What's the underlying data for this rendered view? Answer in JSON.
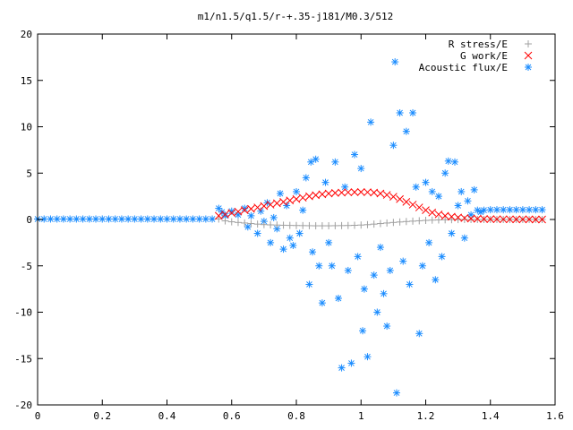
{
  "chart_data": {
    "type": "scatter",
    "title": "m1/n1.5/q1.5/r-+.35-j181/M0.3/512",
    "xlabel": "",
    "ylabel": "",
    "xlim": [
      0,
      1.6
    ],
    "ylim": [
      -20,
      20
    ],
    "x_ticks": [
      "0",
      "0.2",
      "0.4",
      "0.6",
      "0.8",
      "1",
      "1.2",
      "1.4",
      "1.6"
    ],
    "y_ticks": [
      "20",
      "15",
      "10",
      "5",
      "0",
      "-5",
      "-10",
      "-15",
      "-20"
    ],
    "grid": false,
    "legend_position": "top-right",
    "series": [
      {
        "name": "R stress/E",
        "marker": "+",
        "color": "#a0a0a0",
        "points": [
          [
            0.56,
            0.05
          ],
          [
            0.58,
            -0.15
          ],
          [
            0.6,
            -0.25
          ],
          [
            0.62,
            -0.32
          ],
          [
            0.64,
            -0.38
          ],
          [
            0.66,
            -0.44
          ],
          [
            0.68,
            -0.5
          ],
          [
            0.7,
            -0.55
          ],
          [
            0.72,
            -0.58
          ],
          [
            0.74,
            -0.6
          ],
          [
            0.76,
            -0.62
          ],
          [
            0.78,
            -0.64
          ],
          [
            0.8,
            -0.65
          ],
          [
            0.82,
            -0.66
          ],
          [
            0.84,
            -0.67
          ],
          [
            0.86,
            -0.68
          ],
          [
            0.88,
            -0.68
          ],
          [
            0.9,
            -0.68
          ],
          [
            0.92,
            -0.67
          ],
          [
            0.94,
            -0.66
          ],
          [
            0.96,
            -0.65
          ],
          [
            0.98,
            -0.63
          ],
          [
            1.0,
            -0.6
          ],
          [
            1.02,
            -0.56
          ],
          [
            1.04,
            -0.5
          ],
          [
            1.06,
            -0.44
          ],
          [
            1.08,
            -0.38
          ],
          [
            1.1,
            -0.32
          ],
          [
            1.12,
            -0.27
          ],
          [
            1.14,
            -0.22
          ],
          [
            1.16,
            -0.18
          ],
          [
            1.18,
            -0.14
          ],
          [
            1.2,
            -0.1
          ],
          [
            1.22,
            -0.07
          ],
          [
            1.24,
            -0.05
          ],
          [
            1.26,
            -0.03
          ],
          [
            1.28,
            -0.02
          ],
          [
            1.3,
            -0.01
          ],
          [
            1.32,
            0.0
          ],
          [
            1.34,
            0.0
          ],
          [
            1.36,
            0.0
          ],
          [
            1.38,
            0.0
          ],
          [
            1.4,
            0.0
          ],
          [
            1.42,
            0.0
          ],
          [
            1.44,
            0.0
          ],
          [
            1.46,
            0.0
          ],
          [
            1.48,
            0.0
          ],
          [
            1.5,
            0.0
          ],
          [
            1.52,
            0.0
          ],
          [
            1.54,
            0.0
          ],
          [
            1.56,
            0.0
          ]
        ]
      },
      {
        "name": "G work/E",
        "marker": "x",
        "color": "#ff0000",
        "points": [
          [
            0.56,
            0.4
          ],
          [
            0.58,
            0.55
          ],
          [
            0.6,
            0.7
          ],
          [
            0.62,
            0.85
          ],
          [
            0.64,
            1.0
          ],
          [
            0.66,
            1.15
          ],
          [
            0.68,
            1.3
          ],
          [
            0.7,
            1.45
          ],
          [
            0.72,
            1.6
          ],
          [
            0.74,
            1.75
          ],
          [
            0.76,
            1.9
          ],
          [
            0.78,
            2.05
          ],
          [
            0.8,
            2.2
          ],
          [
            0.82,
            2.35
          ],
          [
            0.84,
            2.5
          ],
          [
            0.86,
            2.62
          ],
          [
            0.88,
            2.72
          ],
          [
            0.9,
            2.8
          ],
          [
            0.92,
            2.86
          ],
          [
            0.94,
            2.9
          ],
          [
            0.96,
            2.93
          ],
          [
            0.98,
            2.95
          ],
          [
            1.0,
            2.96
          ],
          [
            1.02,
            2.94
          ],
          [
            1.04,
            2.9
          ],
          [
            1.06,
            2.8
          ],
          [
            1.08,
            2.65
          ],
          [
            1.1,
            2.45
          ],
          [
            1.12,
            2.2
          ],
          [
            1.14,
            1.9
          ],
          [
            1.16,
            1.6
          ],
          [
            1.18,
            1.3
          ],
          [
            1.2,
            1.0
          ],
          [
            1.22,
            0.75
          ],
          [
            1.24,
            0.55
          ],
          [
            1.26,
            0.4
          ],
          [
            1.28,
            0.3
          ],
          [
            1.3,
            0.22
          ],
          [
            1.32,
            0.15
          ],
          [
            1.34,
            0.1
          ],
          [
            1.36,
            0.07
          ],
          [
            1.38,
            0.05
          ],
          [
            1.4,
            0.04
          ],
          [
            1.42,
            0.03
          ],
          [
            1.44,
            0.02
          ],
          [
            1.46,
            0.02
          ],
          [
            1.48,
            0.01
          ],
          [
            1.5,
            0.01
          ],
          [
            1.52,
            0.01
          ],
          [
            1.54,
            0.0
          ],
          [
            1.56,
            0.0
          ]
        ]
      },
      {
        "name": "Acoustic flux/E",
        "marker": "*",
        "color": "#1a8cff",
        "points": [
          [
            0.0,
            0.05
          ],
          [
            0.02,
            0.05
          ],
          [
            0.04,
            0.05
          ],
          [
            0.06,
            0.05
          ],
          [
            0.08,
            0.05
          ],
          [
            0.1,
            0.05
          ],
          [
            0.12,
            0.05
          ],
          [
            0.14,
            0.05
          ],
          [
            0.16,
            0.05
          ],
          [
            0.18,
            0.05
          ],
          [
            0.2,
            0.05
          ],
          [
            0.22,
            0.05
          ],
          [
            0.24,
            0.05
          ],
          [
            0.26,
            0.05
          ],
          [
            0.28,
            0.05
          ],
          [
            0.3,
            0.05
          ],
          [
            0.32,
            0.05
          ],
          [
            0.34,
            0.05
          ],
          [
            0.36,
            0.05
          ],
          [
            0.38,
            0.05
          ],
          [
            0.4,
            0.05
          ],
          [
            0.42,
            0.05
          ],
          [
            0.44,
            0.05
          ],
          [
            0.46,
            0.05
          ],
          [
            0.48,
            0.05
          ],
          [
            0.5,
            0.05
          ],
          [
            0.52,
            0.05
          ],
          [
            0.54,
            0.05
          ],
          [
            0.56,
            1.2
          ],
          [
            0.57,
            0.8
          ],
          [
            0.58,
            0.4
          ],
          [
            0.6,
            0.9
          ],
          [
            0.62,
            0.5
          ],
          [
            0.64,
            1.2
          ],
          [
            0.65,
            -0.8
          ],
          [
            0.66,
            0.4
          ],
          [
            0.68,
            -1.5
          ],
          [
            0.69,
            0.9
          ],
          [
            0.7,
            -0.2
          ],
          [
            0.71,
            1.8
          ],
          [
            0.72,
            -2.5
          ],
          [
            0.73,
            0.2
          ],
          [
            0.74,
            -1.0
          ],
          [
            0.75,
            2.8
          ],
          [
            0.76,
            -3.2
          ],
          [
            0.77,
            1.5
          ],
          [
            0.78,
            -2.0
          ],
          [
            0.79,
            -2.8
          ],
          [
            0.8,
            3.0
          ],
          [
            0.81,
            -1.5
          ],
          [
            0.82,
            1.0
          ],
          [
            0.83,
            4.5
          ],
          [
            0.84,
            -7.0
          ],
          [
            0.845,
            6.2
          ],
          [
            0.85,
            -3.5
          ],
          [
            0.86,
            6.5
          ],
          [
            0.87,
            -5.0
          ],
          [
            0.88,
            -9.0
          ],
          [
            0.89,
            4.0
          ],
          [
            0.9,
            -2.5
          ],
          [
            0.91,
            -5.0
          ],
          [
            0.92,
            6.2
          ],
          [
            0.93,
            -8.5
          ],
          [
            0.94,
            -16.0
          ],
          [
            0.95,
            3.5
          ],
          [
            0.96,
            -5.5
          ],
          [
            0.97,
            -15.5
          ],
          [
            0.98,
            7.0
          ],
          [
            0.99,
            -4.0
          ],
          [
            1.0,
            5.5
          ],
          [
            1.005,
            -12.0
          ],
          [
            1.01,
            -7.5
          ],
          [
            1.02,
            -14.8
          ],
          [
            1.03,
            10.5
          ],
          [
            1.04,
            -6.0
          ],
          [
            1.05,
            -10.0
          ],
          [
            1.06,
            -3.0
          ],
          [
            1.07,
            -8.0
          ],
          [
            1.08,
            -11.5
          ],
          [
            1.09,
            -5.5
          ],
          [
            1.1,
            8.0
          ],
          [
            1.105,
            17.0
          ],
          [
            1.11,
            -18.7
          ],
          [
            1.12,
            11.5
          ],
          [
            1.13,
            -4.5
          ],
          [
            1.14,
            9.5
          ],
          [
            1.15,
            -7.0
          ],
          [
            1.16,
            11.5
          ],
          [
            1.17,
            3.5
          ],
          [
            1.18,
            -12.3
          ],
          [
            1.19,
            -5.0
          ],
          [
            1.2,
            4.0
          ],
          [
            1.21,
            -2.5
          ],
          [
            1.22,
            3.0
          ],
          [
            1.23,
            -6.5
          ],
          [
            1.24,
            2.5
          ],
          [
            1.25,
            -4.0
          ],
          [
            1.26,
            5.0
          ],
          [
            1.27,
            6.3
          ],
          [
            1.28,
            -1.5
          ],
          [
            1.29,
            6.2
          ],
          [
            1.3,
            1.5
          ],
          [
            1.31,
            3.0
          ],
          [
            1.32,
            -2.0
          ],
          [
            1.33,
            2.0
          ],
          [
            1.34,
            0.5
          ],
          [
            1.35,
            3.2
          ],
          [
            1.36,
            1.0
          ],
          [
            1.37,
            0.8
          ],
          [
            1.38,
            1.0
          ],
          [
            1.4,
            1.05
          ],
          [
            1.42,
            1.05
          ],
          [
            1.44,
            1.05
          ],
          [
            1.46,
            1.05
          ],
          [
            1.48,
            1.05
          ],
          [
            1.5,
            1.05
          ],
          [
            1.52,
            1.05
          ],
          [
            1.54,
            1.05
          ],
          [
            1.56,
            1.05
          ]
        ]
      }
    ]
  }
}
